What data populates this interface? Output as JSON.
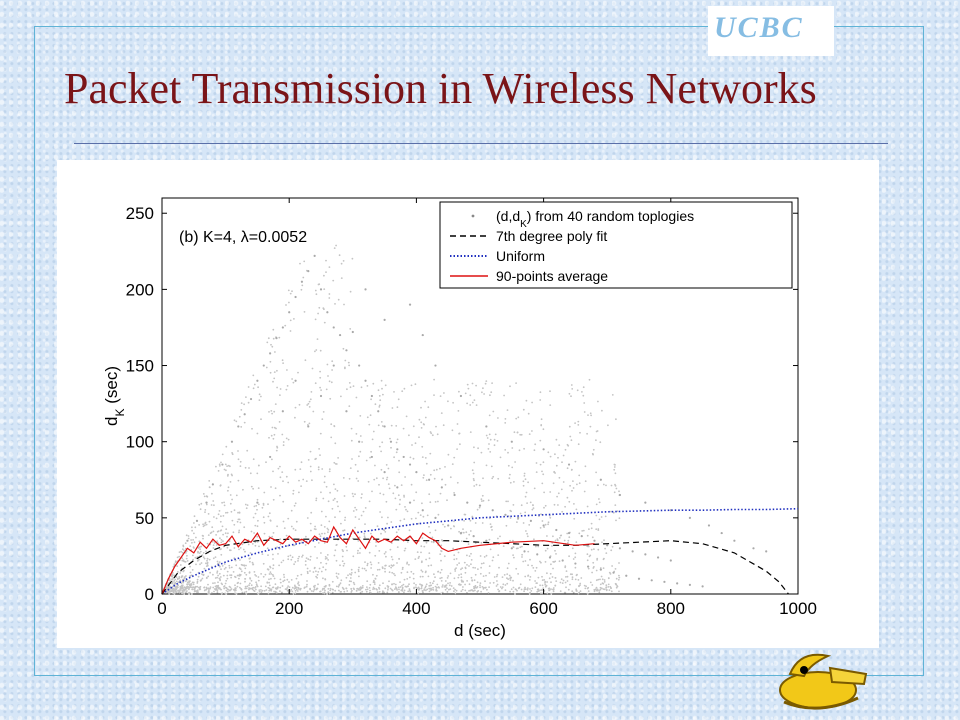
{
  "brand": {
    "tag": "UCBC"
  },
  "slide": {
    "title": "Packet Transmission in Wireless Networks"
  },
  "colors": {
    "title": "#7a1418",
    "poly": "#000000",
    "uniform": "#1f2fbf",
    "average": "#dd1111",
    "scatter": "#bdbdbd"
  },
  "chart_data": {
    "type": "scatter",
    "annotation": "(b) K=4, λ=0.0052",
    "xlabel": "d (sec)",
    "ylabel": "d",
    "ylabel_sub": "K",
    "ylabel_suffix": " (sec)",
    "xlim": [
      0,
      1000
    ],
    "ylim": [
      0,
      260
    ],
    "xticks": [
      0,
      200,
      400,
      600,
      800,
      1000
    ],
    "yticks": [
      0,
      50,
      100,
      150,
      200,
      250
    ],
    "grid": false,
    "legend_position": "top-right",
    "series": [
      {
        "name_main": "(d,d",
        "name_sub": "K",
        "name_tail": ") from 40 random toplogies",
        "kind": "scatter",
        "note": "dense cloud bounded above by y = d, thinning beyond d = 300",
        "points": [
          [
            40,
            35
          ],
          [
            55,
            48
          ],
          [
            70,
            60
          ],
          [
            80,
            72
          ],
          [
            95,
            85
          ],
          [
            110,
            100
          ],
          [
            120,
            110
          ],
          [
            130,
            118
          ],
          [
            140,
            128
          ],
          [
            150,
            140
          ],
          [
            160,
            150
          ],
          [
            170,
            158
          ],
          [
            180,
            168
          ],
          [
            190,
            175
          ],
          [
            200,
            185
          ],
          [
            210,
            195
          ],
          [
            220,
            205
          ],
          [
            230,
            212
          ],
          [
            240,
            222
          ],
          [
            250,
            200
          ],
          [
            260,
            185
          ],
          [
            270,
            175
          ],
          [
            280,
            170
          ],
          [
            290,
            160
          ],
          [
            300,
            172
          ],
          [
            310,
            150
          ],
          [
            320,
            140
          ],
          [
            330,
            130
          ],
          [
            340,
            120
          ],
          [
            350,
            110
          ],
          [
            360,
            100
          ],
          [
            370,
            95
          ],
          [
            380,
            90
          ],
          [
            390,
            85
          ],
          [
            400,
            80
          ],
          [
            420,
            75
          ],
          [
            440,
            70
          ],
          [
            460,
            65
          ],
          [
            480,
            60
          ],
          [
            500,
            58
          ],
          [
            520,
            55
          ],
          [
            540,
            52
          ],
          [
            560,
            50
          ],
          [
            580,
            48
          ],
          [
            600,
            45
          ],
          [
            620,
            42
          ],
          [
            640,
            40
          ],
          [
            660,
            38
          ],
          [
            680,
            35
          ],
          [
            700,
            32
          ],
          [
            720,
            30
          ],
          [
            740,
            28
          ],
          [
            760,
            26
          ],
          [
            780,
            24
          ],
          [
            800,
            22
          ],
          [
            320,
            200
          ],
          [
            350,
            180
          ],
          [
            390,
            190
          ],
          [
            410,
            170
          ],
          [
            430,
            150
          ],
          [
            470,
            130
          ],
          [
            510,
            110
          ],
          [
            550,
            100
          ],
          [
            600,
            95
          ],
          [
            640,
            85
          ],
          [
            690,
            75
          ],
          [
            720,
            65
          ],
          [
            760,
            60
          ],
          [
            800,
            55
          ],
          [
            830,
            50
          ],
          [
            860,
            45
          ],
          [
            880,
            40
          ],
          [
            900,
            35
          ],
          [
            930,
            30
          ],
          [
            950,
            28
          ],
          [
            150,
            60
          ],
          [
            170,
            90
          ],
          [
            190,
            120
          ],
          [
            210,
            140
          ],
          [
            230,
            110
          ],
          [
            250,
            130
          ],
          [
            270,
            150
          ],
          [
            290,
            120
          ],
          [
            310,
            100
          ],
          [
            330,
            90
          ],
          [
            350,
            80
          ],
          [
            370,
            70
          ],
          [
            390,
            60
          ],
          [
            410,
            55
          ],
          [
            430,
            50
          ],
          [
            450,
            45
          ],
          [
            470,
            40
          ],
          [
            490,
            38
          ],
          [
            510,
            35
          ],
          [
            530,
            33
          ],
          [
            550,
            30
          ],
          [
            570,
            28
          ],
          [
            590,
            26
          ],
          [
            610,
            24
          ],
          [
            630,
            22
          ],
          [
            650,
            20
          ],
          [
            670,
            18
          ],
          [
            690,
            16
          ],
          [
            710,
            14
          ],
          [
            730,
            12
          ],
          [
            750,
            10
          ],
          [
            770,
            9
          ],
          [
            790,
            8
          ],
          [
            810,
            7
          ],
          [
            830,
            6
          ],
          [
            850,
            5
          ]
        ]
      },
      {
        "name": "7th degree poly fit",
        "kind": "dashed",
        "x": [
          0,
          25,
          50,
          75,
          100,
          150,
          200,
          250,
          300,
          350,
          400,
          450,
          500,
          550,
          600,
          650,
          700,
          750,
          800,
          850,
          900,
          950,
          970,
          985
        ],
        "y": [
          0,
          14,
          22,
          28,
          32,
          35,
          36,
          36,
          36,
          36,
          35,
          35,
          34,
          33,
          32,
          32,
          33,
          34,
          35,
          33,
          27,
          15,
          8,
          0
        ]
      },
      {
        "name": "Uniform",
        "kind": "dotted",
        "x": [
          0,
          25,
          50,
          100,
          150,
          200,
          250,
          300,
          350,
          400,
          450,
          500,
          550,
          600,
          650,
          700,
          750,
          800,
          850,
          900,
          950,
          1000
        ],
        "y": [
          0,
          7,
          12,
          21,
          27,
          32,
          36,
          40,
          43,
          46,
          48,
          50,
          51,
          52,
          53,
          54,
          54.5,
          55,
          55,
          55.5,
          55.5,
          56
        ]
      },
      {
        "name": "90-points average",
        "kind": "solid",
        "x": [
          0,
          10,
          20,
          30,
          40,
          50,
          60,
          70,
          80,
          90,
          100,
          110,
          120,
          130,
          140,
          150,
          160,
          170,
          180,
          190,
          200,
          210,
          220,
          230,
          240,
          250,
          260,
          270,
          280,
          290,
          300,
          310,
          320,
          330,
          340,
          350,
          360,
          370,
          380,
          390,
          400,
          410,
          420,
          430,
          440,
          450,
          470,
          500,
          550,
          600,
          650,
          680
        ],
        "y": [
          0,
          10,
          18,
          24,
          30,
          27,
          34,
          30,
          36,
          32,
          33,
          38,
          31,
          36,
          34,
          40,
          32,
          37,
          35,
          33,
          38,
          34,
          36,
          33,
          38,
          35,
          34,
          44,
          37,
          33,
          42,
          36,
          30,
          38,
          34,
          36,
          34,
          38,
          35,
          38,
          33,
          40,
          37,
          35,
          30,
          28,
          30,
          32,
          34,
          35,
          32,
          33
        ]
      }
    ]
  }
}
